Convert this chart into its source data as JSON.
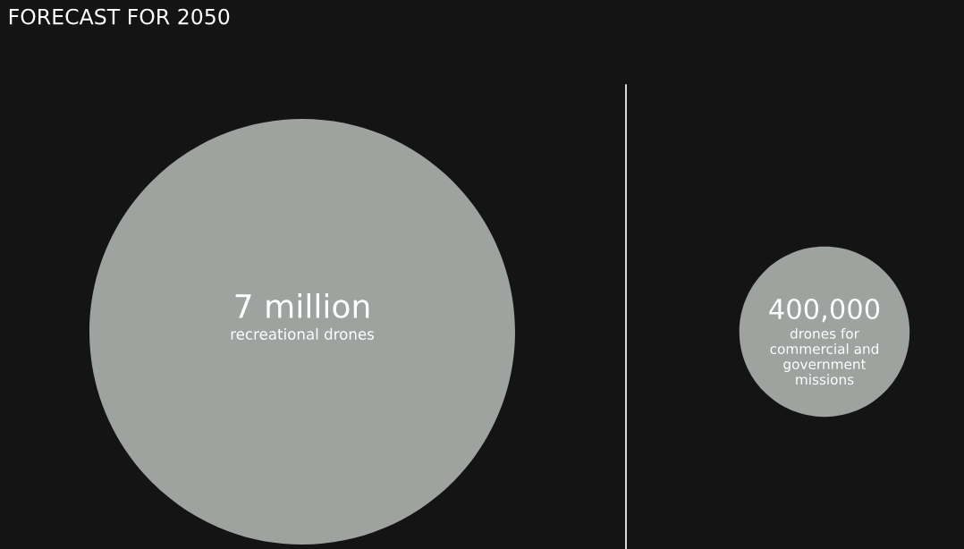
{
  "chart_data": {
    "type": "other",
    "title": "FORECAST FOR 2050",
    "categories": [
      "recreational drones",
      "drones for commercial and government missions"
    ],
    "values": [
      7000000,
      400000
    ],
    "value_labels": [
      "7 million",
      "400,000"
    ],
    "color": "#9ea3a0"
  }
}
